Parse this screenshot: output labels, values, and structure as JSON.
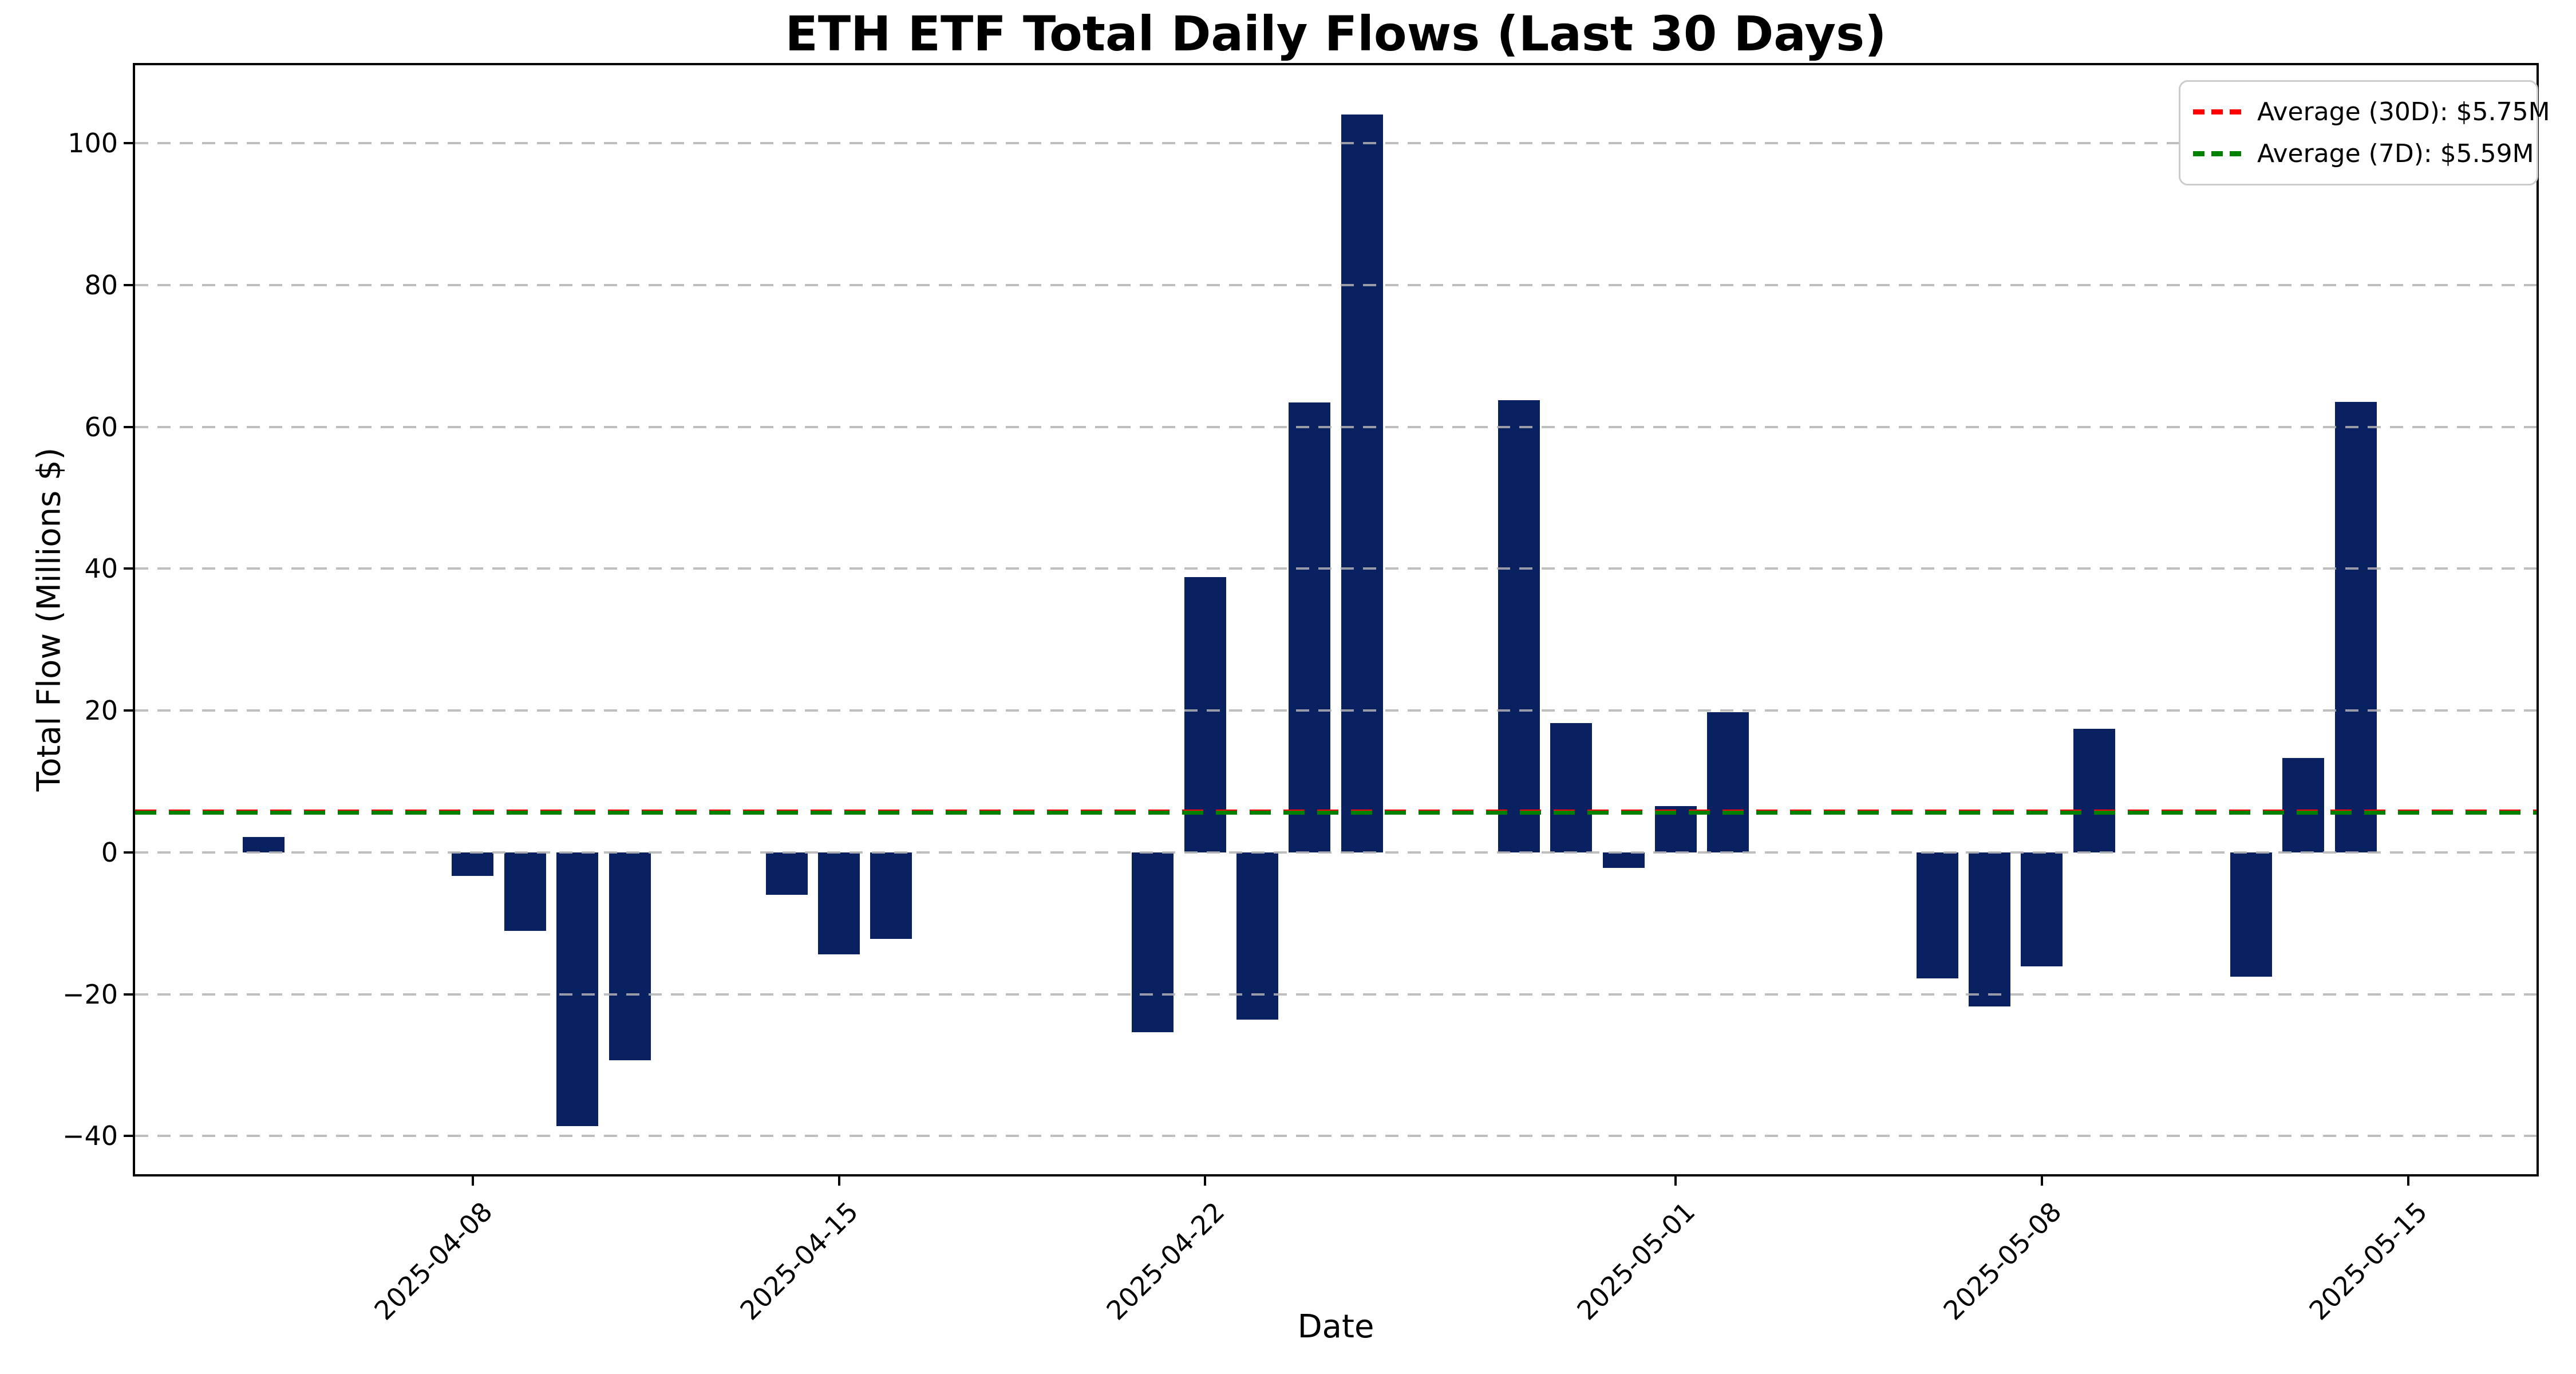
{
  "figure": {
    "background": "#ffffff"
  },
  "chart_data": {
    "type": "bar",
    "title": "ETH ETF Total Daily Flows (Last 30 Days)",
    "xlabel": "Date",
    "ylabel": "Total Flow (Millions $)",
    "categories": [
      "2025-04-04",
      "2025-04-08",
      "2025-04-09",
      "2025-04-10",
      "2025-04-11",
      "2025-04-14",
      "2025-04-15",
      "2025-04-16",
      "2025-04-21",
      "2025-04-22",
      "2025-04-23",
      "2025-04-24",
      "2025-04-25",
      "2025-04-28",
      "2025-04-29",
      "2025-04-30",
      "2025-05-01",
      "2025-05-02",
      "2025-05-06",
      "2025-05-07",
      "2025-05-08",
      "2025-05-09",
      "2025-05-12",
      "2025-05-13",
      "2025-05-14"
    ],
    "values": [
      2.2,
      -3.3,
      -11.1,
      -38.6,
      -29.3,
      -6.0,
      -14.4,
      -12.2,
      -25.4,
      38.8,
      -23.6,
      63.4,
      104.0,
      63.8,
      18.2,
      -2.2,
      6.5,
      19.8,
      -17.8,
      -21.7,
      -16.1,
      17.4,
      -17.5,
      13.3,
      63.5
    ],
    "bar_color": "#0a2161",
    "bar_width_days": 0.8,
    "grid": "horizontal-dashed",
    "grid_color": "rgba(178,178,178,0.85)",
    "ylim": [
      -45.7,
      111.3
    ],
    "yticks": [
      -40,
      -20,
      0,
      20,
      40,
      60,
      80,
      100
    ],
    "xticks": [
      "2025-04-08",
      "2025-04-15",
      "2025-04-22",
      "2025-05-01",
      "2025-05-08",
      "2025-05-15"
    ],
    "x_epoch": "2025-04-01",
    "xlim_days": [
      0.5,
      46.5
    ],
    "legend_position": "upper-right",
    "reference_lines": [
      {
        "name": "average-30d",
        "value": 5.75,
        "label": "Average (30D): $5.75M",
        "color": "#ff0000",
        "style": "dashed"
      },
      {
        "name": "average-7d",
        "value": 5.59,
        "label": "Average (7D): $5.59M",
        "color": "#008000",
        "style": "dashed"
      }
    ]
  }
}
